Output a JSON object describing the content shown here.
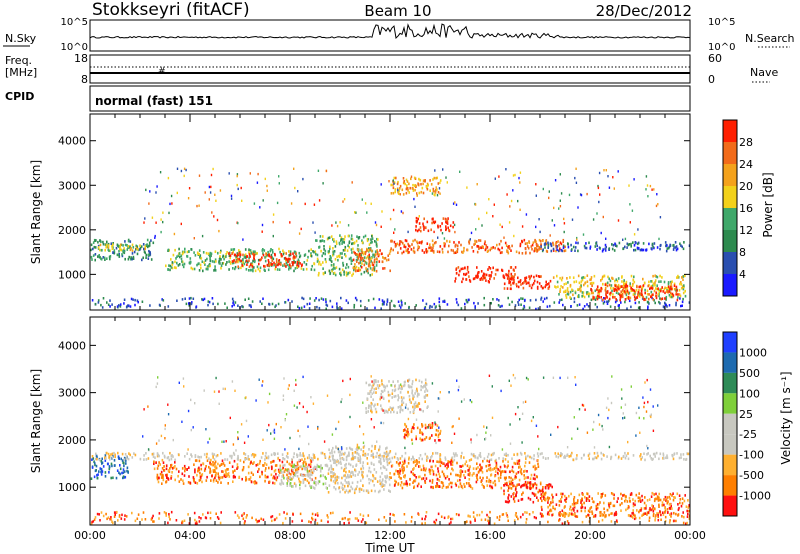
{
  "header": {
    "station": "Stokkseyri (fitACF)",
    "beam": "Beam 10",
    "date": "28/Dec/2012"
  },
  "summary_panels": {
    "nsky": {
      "label": "N.Sky",
      "ticks": [
        "10^5",
        "10^0"
      ]
    },
    "nsearch": {
      "label": "N.Search",
      "ticks": [
        "10^5",
        "10^0"
      ]
    },
    "freq": {
      "label_line1": "Freq.",
      "label_line2": "[MHz]",
      "ticks": [
        "18",
        "8"
      ]
    },
    "nave": {
      "label": "Nave",
      "ticks": [
        "60",
        "0"
      ]
    },
    "cpid": {
      "label": "CPID",
      "text": "normal (fast) 151"
    }
  },
  "colors": {
    "power_scale": [
      "#1a1aff",
      "#2a4fb0",
      "#2d8a4e",
      "#3fa86a",
      "#f2d11b",
      "#f4a21c",
      "#f26b1a",
      "#ff1f00"
    ],
    "velocity_scale": [
      "#ff1010",
      "#ff7f00",
      "#ffb030",
      "#c8c8c0",
      "#c8c8c0",
      "#7fcf3a",
      "#2e8b57",
      "#1e6bb0",
      "#2040ff"
    ]
  },
  "chart_data": [
    {
      "type": "heatmap",
      "panel": "power",
      "ylabel": "Slant Range [km]",
      "y_ticks": [
        "1000",
        "2000",
        "3000",
        "4000"
      ],
      "ylim": [
        200,
        4600
      ],
      "xlim": [
        "00:00",
        "24:00"
      ],
      "colorbar_label": "Power [dB]",
      "colorbar_ticks": [
        "4",
        "8",
        "12",
        "16",
        "20",
        "24",
        "28"
      ],
      "regions": [
        {
          "t0": 0.0,
          "t1": 2.5,
          "r0": 1350,
          "r1": 1800,
          "level": 2
        },
        {
          "t0": 0.2,
          "t1": 2.3,
          "r0": 1550,
          "r1": 1700,
          "level": 4
        },
        {
          "t0": 3.0,
          "t1": 9.0,
          "r0": 1100,
          "r1": 1600,
          "level": 3
        },
        {
          "t0": 5.5,
          "t1": 8.5,
          "r0": 1200,
          "r1": 1500,
          "level": 7
        },
        {
          "t0": 9.0,
          "t1": 11.5,
          "r0": 1000,
          "r1": 1900,
          "level": 3
        },
        {
          "t0": 10.5,
          "t1": 12.0,
          "r0": 1100,
          "r1": 1600,
          "level": 6
        },
        {
          "t0": 12.0,
          "t1": 19.0,
          "r0": 1500,
          "r1": 1800,
          "level": 6
        },
        {
          "t0": 14.5,
          "t1": 17.0,
          "r0": 850,
          "r1": 1200,
          "level": 7
        },
        {
          "t0": 16.5,
          "t1": 18.5,
          "r0": 700,
          "r1": 1000,
          "level": 7
        },
        {
          "t0": 18.5,
          "t1": 23.8,
          "r0": 500,
          "r1": 1000,
          "level": 4
        },
        {
          "t0": 20.0,
          "t1": 23.5,
          "r0": 450,
          "r1": 800,
          "level": 7
        },
        {
          "t0": 18.0,
          "t1": 24.0,
          "r0": 1550,
          "r1": 1750,
          "level": 1
        },
        {
          "t0": 13.0,
          "t1": 14.5,
          "r0": 2000,
          "r1": 2300,
          "level": 7
        },
        {
          "t0": 12.0,
          "t1": 14.0,
          "r0": 2800,
          "r1": 3200,
          "level": 5
        }
      ]
    },
    {
      "type": "heatmap",
      "panel": "velocity",
      "ylabel": "Slant Range [km]",
      "y_ticks": [
        "1000",
        "2000",
        "3000",
        "4000"
      ],
      "ylim": [
        200,
        4600
      ],
      "xlim": [
        "00:00",
        "24:00"
      ],
      "x_ticks": [
        "00:00",
        "04:00",
        "08:00",
        "12:00",
        "16:00",
        "20:00",
        "00:00"
      ],
      "xlabel": "Time UT",
      "colorbar_label": "Velocity [m s⁻¹]",
      "colorbar_ticks": [
        "1000",
        "500",
        "100",
        "25",
        "-25",
        "-100",
        "-500",
        "-1000"
      ],
      "regions": [
        {
          "t0": 0.0,
          "t1": 1.5,
          "r0": 1200,
          "r1": 1700,
          "level": 7
        },
        {
          "t0": 2.5,
          "t1": 9.0,
          "r0": 1100,
          "r1": 1600,
          "level": 1
        },
        {
          "t0": 7.5,
          "t1": 9.5,
          "r0": 1000,
          "r1": 1500,
          "level": 4
        },
        {
          "t0": 9.5,
          "t1": 12.0,
          "r0": 900,
          "r1": 1900,
          "level": 3
        },
        {
          "t0": 0.0,
          "t1": 24.0,
          "r0": 1600,
          "r1": 1750,
          "level": 3
        },
        {
          "t0": 12.0,
          "t1": 18.0,
          "r0": 1000,
          "r1": 1600,
          "level": 1
        },
        {
          "t0": 16.5,
          "t1": 18.5,
          "r0": 700,
          "r1": 1100,
          "level": 0
        },
        {
          "t0": 18.0,
          "t1": 24.0,
          "r0": 400,
          "r1": 900,
          "level": 1
        },
        {
          "t0": 12.5,
          "t1": 14.0,
          "r0": 2000,
          "r1": 2400,
          "level": 1
        },
        {
          "t0": 11.0,
          "t1": 13.5,
          "r0": 2600,
          "r1": 3300,
          "level": 3
        }
      ]
    }
  ]
}
